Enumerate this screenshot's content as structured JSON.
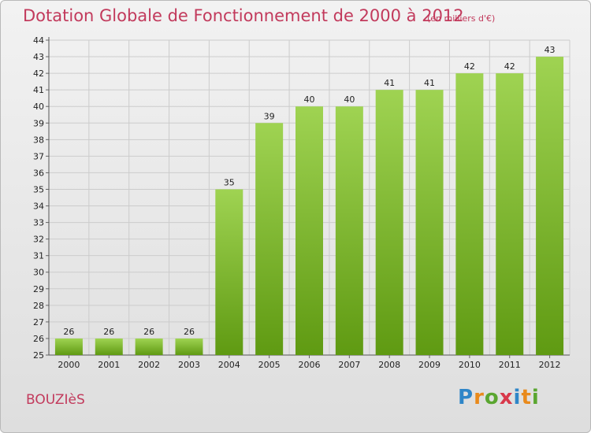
{
  "header": {
    "title": "Dotation Globale de Fonctionnement de 2000 à 2012",
    "unit": "(en milliers d'€)"
  },
  "footer": {
    "commune": "BOUZIèS",
    "logo": [
      "P",
      "r",
      "o",
      "x",
      "i",
      "t",
      "i"
    ]
  },
  "colors": {
    "bar_light": "#9fd352",
    "bar_dark": "#5f9a12",
    "title": "#c23a5c"
  },
  "chart_data": {
    "type": "bar",
    "title": "Dotation Globale de Fonctionnement de 2000 à 2012",
    "subtitle": "(en milliers d'€)",
    "xlabel": "",
    "ylabel": "",
    "categories": [
      "2000",
      "2001",
      "2002",
      "2003",
      "2004",
      "2005",
      "2006",
      "2007",
      "2008",
      "2009",
      "2010",
      "2011",
      "2012"
    ],
    "values": [
      26,
      26,
      26,
      26,
      35,
      39,
      40,
      40,
      41,
      41,
      42,
      42,
      43
    ],
    "ylim": [
      25,
      44
    ],
    "yticks": [
      25,
      26,
      27,
      28,
      29,
      30,
      31,
      32,
      33,
      34,
      35,
      36,
      37,
      38,
      39,
      40,
      41,
      42,
      43,
      44
    ],
    "grid": true,
    "legend": "none"
  }
}
